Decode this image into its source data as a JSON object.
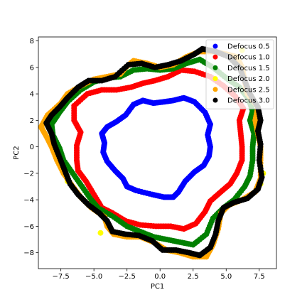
{
  "chart_data": {
    "type": "scatter",
    "title": "",
    "xlabel": "PC1",
    "ylabel": "PC2",
    "xlim": [
      -9.2,
      8.8
    ],
    "ylim": [
      -9.2,
      8.3
    ],
    "xticks": [
      -7.5,
      -5.0,
      -2.5,
      0.0,
      2.5,
      5.0,
      7.5
    ],
    "xtick_labels": [
      "−7.5",
      "−5.0",
      "−2.5",
      "0.0",
      "2.5",
      "5.0",
      "7.5"
    ],
    "yticks": [
      -8,
      -6,
      -4,
      -2,
      0,
      2,
      4,
      6,
      8
    ],
    "ytick_labels": [
      "−8",
      "−6",
      "−4",
      "−2",
      "0",
      "2",
      "4",
      "6",
      "8"
    ],
    "grid": false,
    "legend_position": "top-right",
    "series": [
      {
        "name": "Defocus 0.5",
        "color": "#0000ff",
        "points": [
          [
            3.8,
            0
          ],
          [
            3.6,
            0.9
          ],
          [
            3.8,
            1.7
          ],
          [
            3.4,
            2.6
          ],
          [
            2.6,
            3.4
          ],
          [
            1.8,
            3.7
          ],
          [
            1.0,
            3.5
          ],
          [
            0.3,
            3.4
          ],
          [
            -0.5,
            3.3
          ],
          [
            -1.3,
            3.5
          ],
          [
            -2.0,
            3.2
          ],
          [
            -2.6,
            2.4
          ],
          [
            -3.3,
            1.9
          ],
          [
            -4.0,
            1.5
          ],
          [
            -4.4,
            1.0
          ],
          [
            -4.2,
            0.3
          ],
          [
            -4.3,
            -0.4
          ],
          [
            -4.0,
            -1.1
          ],
          [
            -3.4,
            -1.8
          ],
          [
            -2.8,
            -2.4
          ],
          [
            -2.5,
            -3.0
          ],
          [
            -1.8,
            -3.3
          ],
          [
            -0.6,
            -3.6
          ],
          [
            0.3,
            -3.8
          ],
          [
            1.0,
            -3.8
          ],
          [
            1.4,
            -3.4
          ],
          [
            1.9,
            -2.6
          ],
          [
            2.6,
            -1.9
          ],
          [
            3.3,
            -1.4
          ],
          [
            3.7,
            -0.7
          ]
        ]
      },
      {
        "name": "Defocus 1.0",
        "color": "#ff0000",
        "points": [
          [
            6.2,
            0
          ],
          [
            6.1,
            1.0
          ],
          [
            6.0,
            2.0
          ],
          [
            6.3,
            2.9
          ],
          [
            5.7,
            3.8
          ],
          [
            4.8,
            4.6
          ],
          [
            3.8,
            5.3
          ],
          [
            2.6,
            5.7
          ],
          [
            1.6,
            5.8
          ],
          [
            0.6,
            5.3
          ],
          [
            -0.4,
            5.0
          ],
          [
            -1.3,
            4.8
          ],
          [
            -2.2,
            4.5
          ],
          [
            -3.3,
            4.3
          ],
          [
            -4.4,
            4.3
          ],
          [
            -5.5,
            4.0
          ],
          [
            -6.5,
            3.1
          ],
          [
            -6.5,
            2.0
          ],
          [
            -6.0,
            1.1
          ],
          [
            -6.3,
            0.1
          ],
          [
            -6.3,
            -1.0
          ],
          [
            -6.2,
            -1.8
          ],
          [
            -5.6,
            -2.6
          ],
          [
            -5.0,
            -3.6
          ],
          [
            -4.4,
            -4.6
          ],
          [
            -3.6,
            -5.0
          ],
          [
            -2.6,
            -5.6
          ],
          [
            -1.5,
            -5.9
          ],
          [
            -0.3,
            -6.0
          ],
          [
            0.8,
            -6.0
          ],
          [
            1.8,
            -6.2
          ],
          [
            2.7,
            -5.8
          ],
          [
            3.4,
            -4.9
          ],
          [
            3.8,
            -4.1
          ],
          [
            4.6,
            -3.4
          ],
          [
            5.3,
            -2.8
          ],
          [
            5.8,
            -2.0
          ],
          [
            6.2,
            -1.0
          ]
        ]
      },
      {
        "name": "Defocus 1.5",
        "color": "#008000",
        "points": [
          [
            7.0,
            0
          ],
          [
            7.1,
            1.0
          ],
          [
            6.8,
            2.0
          ],
          [
            7.0,
            2.7
          ],
          [
            6.7,
            3.6
          ],
          [
            6.0,
            4.5
          ],
          [
            5.0,
            5.2
          ],
          [
            4.0,
            6.0
          ],
          [
            3.0,
            6.6
          ],
          [
            2.0,
            6.3
          ],
          [
            1.0,
            5.9
          ],
          [
            0.0,
            5.8
          ],
          [
            -1.0,
            5.9
          ],
          [
            -2.0,
            5.8
          ],
          [
            -3.0,
            5.3
          ],
          [
            -4.0,
            5.2
          ],
          [
            -5.0,
            4.9
          ],
          [
            -6.0,
            4.3
          ],
          [
            -7.0,
            3.4
          ],
          [
            -7.6,
            2.6
          ],
          [
            -8.2,
            1.7
          ],
          [
            -8.1,
            0.9
          ],
          [
            -7.6,
            -0.1
          ],
          [
            -7.3,
            -1.0
          ],
          [
            -6.6,
            -2.0
          ],
          [
            -5.9,
            -3.0
          ],
          [
            -5.2,
            -4.0
          ],
          [
            -4.7,
            -4.6
          ],
          [
            -3.5,
            -5.3
          ],
          [
            -2.5,
            -6.0
          ],
          [
            -1.5,
            -6.4
          ],
          [
            -0.5,
            -6.8
          ],
          [
            0.5,
            -7.0
          ],
          [
            1.5,
            -7.2
          ],
          [
            2.5,
            -7.4
          ],
          [
            3.5,
            -6.6
          ],
          [
            4.0,
            -5.4
          ],
          [
            4.8,
            -4.6
          ],
          [
            5.6,
            -4.0
          ],
          [
            6.4,
            -3.0
          ],
          [
            6.8,
            -2.2
          ],
          [
            7.0,
            -1.0
          ]
        ]
      },
      {
        "name": "Defocus 2.0",
        "color": "#ffff00",
        "points": [
          [
            7.8,
            -2.0
          ],
          [
            7.6,
            -2.8
          ],
          [
            3.5,
            -8.3
          ],
          [
            -4.5,
            -6.5
          ],
          [
            -7.0,
            -2.6
          ],
          [
            6.2,
            7.3
          ]
        ]
      },
      {
        "name": "Defocus 2.5",
        "color": "#ffa500",
        "points": [
          [
            7.6,
            0
          ],
          [
            7.4,
            1.0
          ],
          [
            7.2,
            2.0
          ],
          [
            7.4,
            3.0
          ],
          [
            6.6,
            4.0
          ],
          [
            6.4,
            5.0
          ],
          [
            6.2,
            6.0
          ],
          [
            5.8,
            6.8
          ],
          [
            5.0,
            7.0
          ],
          [
            4.0,
            7.2
          ],
          [
            3.0,
            7.2
          ],
          [
            2.0,
            6.8
          ],
          [
            1.0,
            6.2
          ],
          [
            0.0,
            6.0
          ],
          [
            -1.0,
            6.3
          ],
          [
            -2.0,
            6.5
          ],
          [
            -2.6,
            6.0
          ],
          [
            -3.0,
            5.5
          ],
          [
            -4.0,
            5.3
          ],
          [
            -5.0,
            5.1
          ],
          [
            -6.0,
            4.6
          ],
          [
            -7.0,
            4.0
          ],
          [
            -7.5,
            3.3
          ],
          [
            -8.5,
            2.4
          ],
          [
            -9.0,
            1.5
          ],
          [
            -8.6,
            0.8
          ],
          [
            -8.2,
            0
          ],
          [
            -7.8,
            -1.0
          ],
          [
            -7.3,
            -2.0
          ],
          [
            -6.6,
            -3.0
          ],
          [
            -6.0,
            -3.8
          ],
          [
            -5.2,
            -4.6
          ],
          [
            -4.2,
            -5.3
          ],
          [
            -4.0,
            -6.0
          ],
          [
            -3.5,
            -6.6
          ],
          [
            -2.5,
            -6.8
          ],
          [
            -1.5,
            -6.8
          ],
          [
            -0.5,
            -7.2
          ],
          [
            0.5,
            -7.8
          ],
          [
            1.5,
            -8.0
          ],
          [
            2.5,
            -8.3
          ],
          [
            3.5,
            -8.3
          ],
          [
            4.0,
            -7.4
          ],
          [
            4.4,
            -6.2
          ],
          [
            4.6,
            -5.0
          ],
          [
            5.2,
            -4.4
          ],
          [
            6.2,
            -4.0
          ],
          [
            7.2,
            -3.4
          ],
          [
            7.6,
            -2.4
          ],
          [
            7.6,
            -1.0
          ]
        ]
      },
      {
        "name": "Defocus 3.0",
        "color": "#000000",
        "points": [
          [
            7.6,
            0.2
          ],
          [
            7.4,
            1.2
          ],
          [
            7.6,
            2.0
          ],
          [
            7.4,
            3.0
          ],
          [
            6.8,
            4.0
          ],
          [
            6.4,
            5.0
          ],
          [
            6.0,
            6.0
          ],
          [
            5.2,
            6.8
          ],
          [
            4.2,
            7.2
          ],
          [
            3.2,
            7.4
          ],
          [
            2.6,
            7.0
          ],
          [
            1.6,
            6.5
          ],
          [
            0.6,
            6.2
          ],
          [
            -0.4,
            6.0
          ],
          [
            -1.4,
            6.3
          ],
          [
            -2.4,
            6.2
          ],
          [
            -3.4,
            5.3
          ],
          [
            -4.4,
            5.0
          ],
          [
            -5.4,
            5.0
          ],
          [
            -6.2,
            4.5
          ],
          [
            -7.0,
            3.7
          ],
          [
            -7.6,
            3.0
          ],
          [
            -8.2,
            2.4
          ],
          [
            -8.6,
            1.8
          ],
          [
            -8.2,
            1.0
          ],
          [
            -8.0,
            0.2
          ],
          [
            -7.6,
            -0.8
          ],
          [
            -7.2,
            -1.8
          ],
          [
            -6.8,
            -2.8
          ],
          [
            -6.2,
            -3.6
          ],
          [
            -5.4,
            -4.4
          ],
          [
            -4.6,
            -5.0
          ],
          [
            -4.0,
            -5.6
          ],
          [
            -3.6,
            -6.4
          ],
          [
            -2.6,
            -6.6
          ],
          [
            -1.6,
            -6.7
          ],
          [
            -0.6,
            -7.1
          ],
          [
            0.2,
            -7.8
          ],
          [
            1.2,
            -7.8
          ],
          [
            2.2,
            -8.0
          ],
          [
            3.0,
            -8.2
          ],
          [
            3.8,
            -7.6
          ],
          [
            4.2,
            -6.6
          ],
          [
            4.4,
            -5.6
          ],
          [
            4.8,
            -4.6
          ],
          [
            5.6,
            -4.2
          ],
          [
            6.6,
            -3.9
          ],
          [
            7.4,
            -3.2
          ],
          [
            7.7,
            -2.3
          ],
          [
            7.5,
            -1.0
          ]
        ]
      }
    ]
  }
}
